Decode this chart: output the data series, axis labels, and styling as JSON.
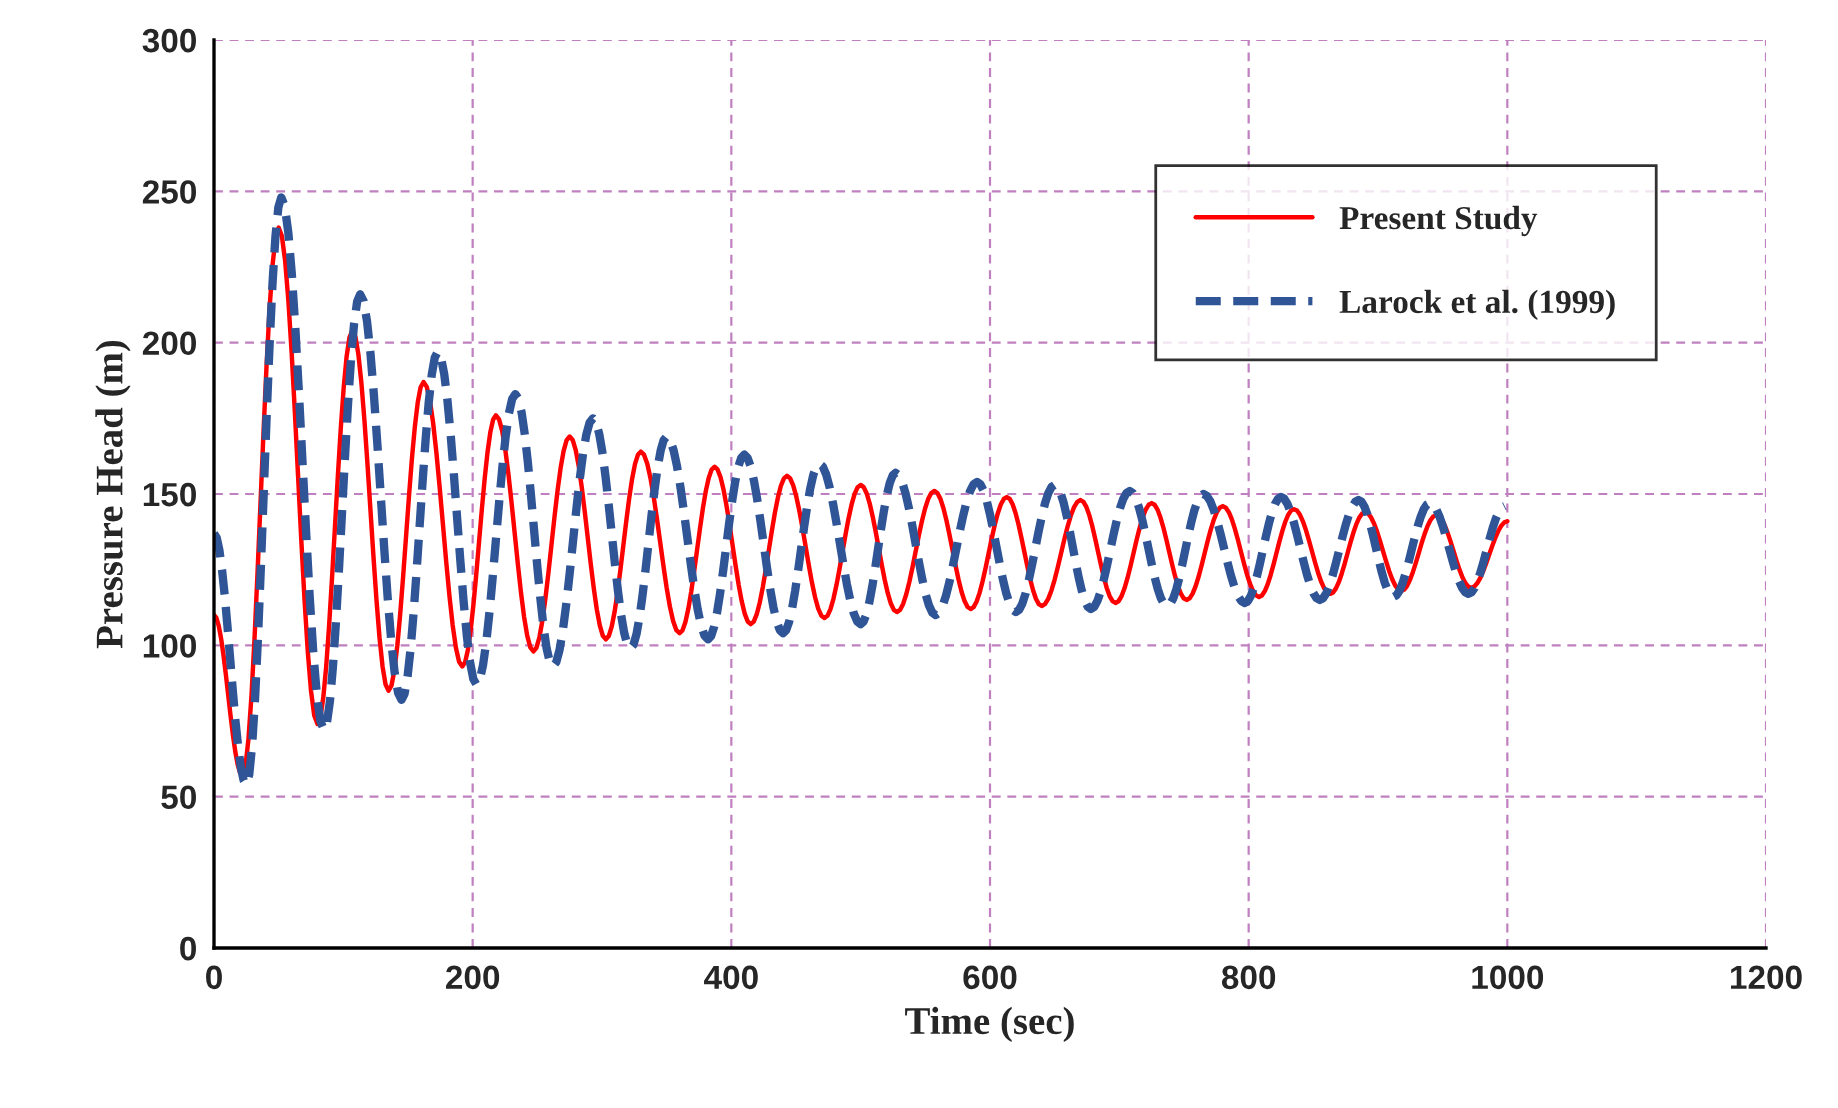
{
  "chart_data": {
    "type": "line",
    "xlabel": "Time (sec)",
    "ylabel": "Pressure Head (m)",
    "xlim": [
      0,
      1200
    ],
    "ylim": [
      0,
      300
    ],
    "xticks": [
      0,
      200,
      400,
      600,
      800,
      1000,
      1200
    ],
    "yticks": [
      0,
      50,
      100,
      150,
      200,
      250,
      300
    ],
    "grid": true,
    "legend": "top right",
    "marker": "none",
    "series": [
      {
        "name": "Present Study",
        "color": "#ff0000",
        "line_style": "solid",
        "x": [
          0,
          22,
          50,
          80,
          107,
          135,
          162,
          192,
          218,
          247,
          275,
          303,
          330,
          360,
          387,
          415,
          443,
          472,
          500,
          528,
          557,
          585,
          613,
          640,
          670,
          697,
          725,
          752,
          780,
          808,
          835,
          863,
          890,
          918,
          945,
          972,
          1000
        ],
        "values": [
          110,
          57,
          238,
          74,
          204,
          85,
          187,
          93,
          176,
          98,
          169,
          102,
          164,
          104,
          159,
          107,
          156,
          109,
          153,
          111,
          151,
          112,
          149,
          113,
          148,
          114,
          147,
          115,
          146,
          116,
          145,
          117,
          144,
          118,
          143,
          119,
          141
        ]
      },
      {
        "name": "Larock et al. (1999)",
        "color": "#2f5597",
        "line_style": "dashed",
        "x": [
          0,
          25,
          52,
          85,
          113,
          145,
          173,
          203,
          233,
          262,
          293,
          322,
          350,
          382,
          410,
          440,
          468,
          500,
          527,
          558,
          590,
          620,
          650,
          678,
          708,
          737,
          765,
          797,
          825,
          855,
          885,
          912,
          940,
          970,
          998
        ],
        "values": [
          137,
          54,
          248,
          72,
          216,
          82,
          197,
          87,
          183,
          93,
          175,
          99,
          169,
          102,
          163,
          104,
          160,
          107,
          157,
          110,
          154,
          111,
          153,
          112,
          151,
          113,
          150,
          114,
          149,
          115,
          148,
          116,
          147,
          117,
          146
        ]
      }
    ]
  }
}
